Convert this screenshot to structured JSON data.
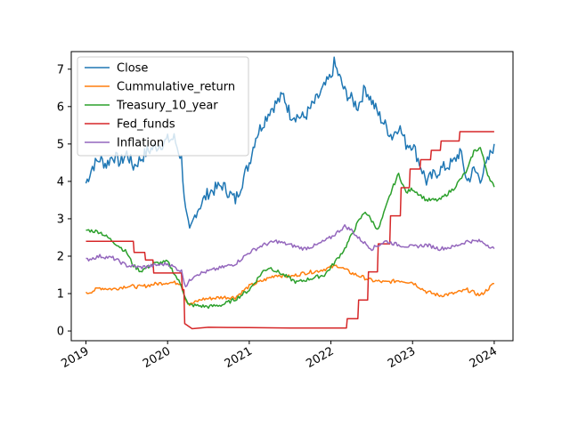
{
  "chart_data": {
    "type": "line",
    "title": "",
    "xlabel": "",
    "ylabel": "",
    "x_ticks": [
      "2019",
      "2020",
      "2021",
      "2022",
      "2023",
      "2024"
    ],
    "y_ticks": [
      "0",
      "1",
      "2",
      "3",
      "4",
      "5",
      "6",
      "7"
    ],
    "xlim": [
      2018.82,
      2024.23
    ],
    "ylim": [
      -0.26,
      7.47
    ],
    "grid": false,
    "legend_position": "upper-left",
    "series": [
      {
        "name": "Close",
        "color": "#1f77b4",
        "points": [
          [
            2019.0,
            3.95
          ],
          [
            2019.08,
            4.4
          ],
          [
            2019.17,
            4.6
          ],
          [
            2019.25,
            4.45
          ],
          [
            2019.33,
            4.7
          ],
          [
            2019.42,
            4.5
          ],
          [
            2019.5,
            4.75
          ],
          [
            2019.58,
            4.4
          ],
          [
            2019.67,
            4.6
          ],
          [
            2019.75,
            4.8
          ],
          [
            2019.83,
            4.9
          ],
          [
            2019.92,
            5.0
          ],
          [
            2020.0,
            5.1
          ],
          [
            2020.08,
            5.15
          ],
          [
            2020.17,
            4.6
          ],
          [
            2020.22,
            3.2
          ],
          [
            2020.27,
            2.6
          ],
          [
            2020.35,
            3.2
          ],
          [
            2020.5,
            3.7
          ],
          [
            2020.67,
            3.9
          ],
          [
            2020.83,
            3.5
          ],
          [
            2021.0,
            4.5
          ],
          [
            2021.08,
            5.2
          ],
          [
            2021.25,
            5.9
          ],
          [
            2021.42,
            6.3
          ],
          [
            2021.5,
            5.8
          ],
          [
            2021.67,
            5.7
          ],
          [
            2021.83,
            6.2
          ],
          [
            2022.0,
            6.8
          ],
          [
            2022.04,
            7.15
          ],
          [
            2022.17,
            6.4
          ],
          [
            2022.33,
            6.0
          ],
          [
            2022.42,
            6.5
          ],
          [
            2022.58,
            5.8
          ],
          [
            2022.75,
            5.2
          ],
          [
            2022.83,
            5.5
          ],
          [
            2022.92,
            5.0
          ],
          [
            2023.0,
            5.0
          ],
          [
            2023.17,
            4.0
          ],
          [
            2023.33,
            4.3
          ],
          [
            2023.5,
            4.5
          ],
          [
            2023.58,
            4.8
          ],
          [
            2023.67,
            4.0
          ],
          [
            2023.75,
            4.3
          ],
          [
            2023.83,
            4.1
          ],
          [
            2023.9,
            4.4
          ],
          [
            2024.0,
            5.0
          ]
        ]
      },
      {
        "name": "Cummulative_return",
        "color": "#ff7f0e",
        "points": [
          [
            2019.0,
            1.0
          ],
          [
            2019.17,
            1.15
          ],
          [
            2019.33,
            1.12
          ],
          [
            2019.5,
            1.2
          ],
          [
            2019.67,
            1.18
          ],
          [
            2019.83,
            1.25
          ],
          [
            2020.0,
            1.3
          ],
          [
            2020.17,
            1.28
          ],
          [
            2020.22,
            0.85
          ],
          [
            2020.27,
            0.7
          ],
          [
            2020.42,
            0.85
          ],
          [
            2020.67,
            0.9
          ],
          [
            2020.83,
            0.9
          ],
          [
            2021.0,
            1.2
          ],
          [
            2021.17,
            1.35
          ],
          [
            2021.33,
            1.5
          ],
          [
            2021.5,
            1.45
          ],
          [
            2021.67,
            1.55
          ],
          [
            2021.83,
            1.6
          ],
          [
            2022.0,
            1.7
          ],
          [
            2022.08,
            1.75
          ],
          [
            2022.25,
            1.55
          ],
          [
            2022.5,
            1.35
          ],
          [
            2022.67,
            1.3
          ],
          [
            2022.83,
            1.35
          ],
          [
            2023.0,
            1.3
          ],
          [
            2023.17,
            1.05
          ],
          [
            2023.33,
            0.95
          ],
          [
            2023.5,
            1.0
          ],
          [
            2023.67,
            1.1
          ],
          [
            2023.83,
            0.95
          ],
          [
            2024.0,
            1.27
          ]
        ]
      },
      {
        "name": "Treasury_10_year",
        "color": "#2ca02c",
        "points": [
          [
            2019.0,
            2.7
          ],
          [
            2019.17,
            2.65
          ],
          [
            2019.33,
            2.4
          ],
          [
            2019.5,
            2.1
          ],
          [
            2019.58,
            1.75
          ],
          [
            2019.67,
            1.6
          ],
          [
            2019.83,
            1.8
          ],
          [
            2020.0,
            1.85
          ],
          [
            2020.17,
            1.2
          ],
          [
            2020.25,
            0.7
          ],
          [
            2020.5,
            0.65
          ],
          [
            2020.67,
            0.7
          ],
          [
            2020.83,
            0.85
          ],
          [
            2021.0,
            1.1
          ],
          [
            2021.17,
            1.6
          ],
          [
            2021.25,
            1.7
          ],
          [
            2021.42,
            1.5
          ],
          [
            2021.58,
            1.3
          ],
          [
            2021.75,
            1.4
          ],
          [
            2021.92,
            1.5
          ],
          [
            2022.0,
            1.7
          ],
          [
            2022.17,
            2.2
          ],
          [
            2022.33,
            2.9
          ],
          [
            2022.42,
            3.2
          ],
          [
            2022.58,
            2.7
          ],
          [
            2022.75,
            3.8
          ],
          [
            2022.83,
            4.2
          ],
          [
            2022.92,
            3.7
          ],
          [
            2023.0,
            3.8
          ],
          [
            2023.17,
            3.5
          ],
          [
            2023.33,
            3.5
          ],
          [
            2023.5,
            3.8
          ],
          [
            2023.67,
            4.3
          ],
          [
            2023.75,
            4.8
          ],
          [
            2023.83,
            4.9
          ],
          [
            2023.92,
            4.2
          ],
          [
            2024.0,
            3.85
          ]
        ]
      },
      {
        "name": "Fed_funds",
        "color": "#d62728",
        "points": [
          [
            2019.0,
            2.4
          ],
          [
            2019.58,
            2.4
          ],
          [
            2019.59,
            2.1
          ],
          [
            2019.72,
            2.1
          ],
          [
            2019.73,
            1.9
          ],
          [
            2019.82,
            1.9
          ],
          [
            2019.83,
            1.55
          ],
          [
            2020.17,
            1.55
          ],
          [
            2020.18,
            1.1
          ],
          [
            2020.2,
            1.1
          ],
          [
            2020.21,
            0.2
          ],
          [
            2020.3,
            0.06
          ],
          [
            2020.5,
            0.1
          ],
          [
            2021.0,
            0.09
          ],
          [
            2021.5,
            0.08
          ],
          [
            2022.0,
            0.08
          ],
          [
            2022.19,
            0.08
          ],
          [
            2022.2,
            0.33
          ],
          [
            2022.33,
            0.33
          ],
          [
            2022.34,
            0.83
          ],
          [
            2022.45,
            0.83
          ],
          [
            2022.46,
            1.58
          ],
          [
            2022.57,
            1.58
          ],
          [
            2022.58,
            2.33
          ],
          [
            2022.72,
            2.33
          ],
          [
            2022.73,
            3.08
          ],
          [
            2022.85,
            3.08
          ],
          [
            2022.86,
            3.83
          ],
          [
            2022.96,
            3.83
          ],
          [
            2022.97,
            4.33
          ],
          [
            2023.09,
            4.33
          ],
          [
            2023.1,
            4.58
          ],
          [
            2023.22,
            4.58
          ],
          [
            2023.23,
            4.83
          ],
          [
            2023.34,
            4.83
          ],
          [
            2023.35,
            5.08
          ],
          [
            2023.57,
            5.08
          ],
          [
            2023.58,
            5.33
          ],
          [
            2024.0,
            5.33
          ]
        ]
      },
      {
        "name": "Inflation",
        "color": "#9467bd",
        "points": [
          [
            2019.0,
            1.9
          ],
          [
            2019.17,
            2.0
          ],
          [
            2019.33,
            1.95
          ],
          [
            2019.5,
            1.75
          ],
          [
            2019.67,
            1.7
          ],
          [
            2019.83,
            1.75
          ],
          [
            2020.0,
            1.8
          ],
          [
            2020.17,
            1.6
          ],
          [
            2020.22,
            1.2
          ],
          [
            2020.33,
            1.5
          ],
          [
            2020.5,
            1.6
          ],
          [
            2020.67,
            1.7
          ],
          [
            2020.83,
            1.8
          ],
          [
            2021.0,
            2.1
          ],
          [
            2021.17,
            2.3
          ],
          [
            2021.33,
            2.4
          ],
          [
            2021.5,
            2.3
          ],
          [
            2021.67,
            2.2
          ],
          [
            2021.83,
            2.3
          ],
          [
            2022.0,
            2.5
          ],
          [
            2022.17,
            2.8
          ],
          [
            2022.25,
            2.7
          ],
          [
            2022.33,
            2.5
          ],
          [
            2022.5,
            2.2
          ],
          [
            2022.67,
            2.4
          ],
          [
            2022.83,
            2.3
          ],
          [
            2023.0,
            2.25
          ],
          [
            2023.17,
            2.3
          ],
          [
            2023.33,
            2.2
          ],
          [
            2023.5,
            2.25
          ],
          [
            2023.67,
            2.4
          ],
          [
            2023.83,
            2.4
          ],
          [
            2023.92,
            2.3
          ],
          [
            2024.0,
            2.2
          ]
        ]
      }
    ]
  }
}
